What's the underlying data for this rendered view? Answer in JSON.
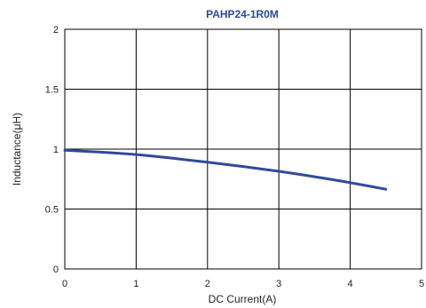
{
  "chart_data": {
    "type": "line",
    "title": "PAHP24-1R0M",
    "xlabel": "DC Current(A)",
    "ylabel": "Inductance(μH)",
    "xlim": [
      0,
      5
    ],
    "ylim": [
      0,
      2
    ],
    "xticks": [
      "0",
      "1",
      "2",
      "3",
      "4",
      "5"
    ],
    "yticks": [
      "0",
      "0.5",
      "1",
      "1.5",
      "2"
    ],
    "grid": true,
    "colors": {
      "title": "#2a4a9a",
      "series": "#2f4a9e",
      "grid": "#000000"
    },
    "series": [
      {
        "x": [
          0,
          0.5,
          1.0,
          1.5,
          2.0,
          2.5,
          3.0,
          3.5,
          4.0,
          4.5
        ],
        "y": [
          0.99,
          0.975,
          0.955,
          0.925,
          0.89,
          0.855,
          0.815,
          0.77,
          0.72,
          0.665
        ]
      }
    ]
  }
}
